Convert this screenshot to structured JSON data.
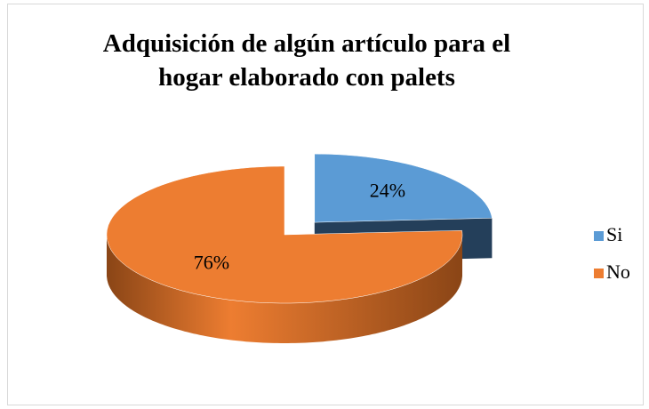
{
  "chart_data": {
    "type": "pie3d",
    "title": "Adquisición de algún artículo para el hogar elaborado con palets",
    "categories": [
      "Si",
      "No"
    ],
    "values": [
      24,
      76
    ],
    "value_labels": [
      "24%",
      "76%"
    ],
    "colors": [
      "#5b9bd5",
      "#ed7d31"
    ],
    "side_colors": [
      "#243f5a",
      "#8a4516"
    ],
    "legend": "right"
  }
}
